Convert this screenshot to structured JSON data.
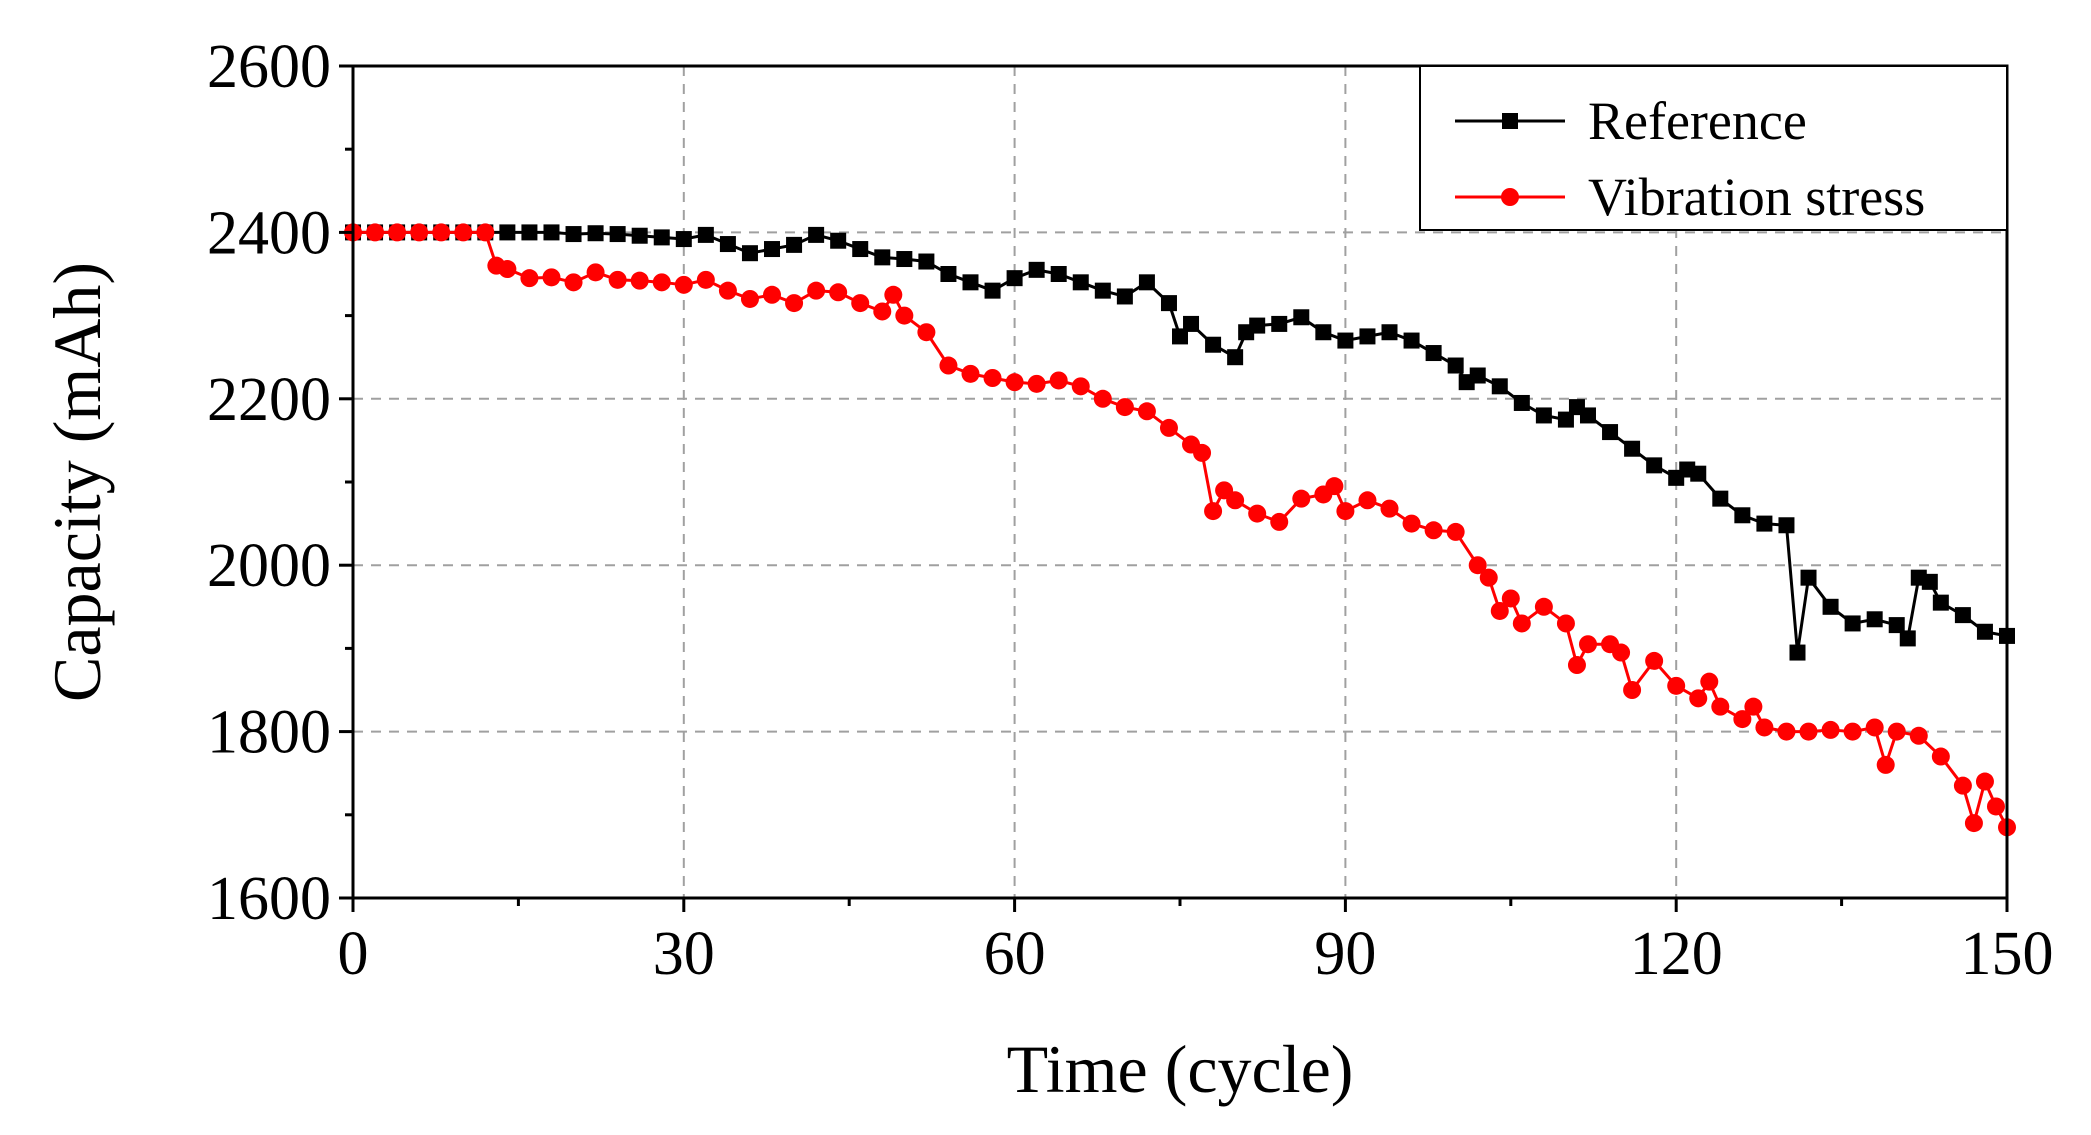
{
  "chart_data": {
    "type": "line",
    "title": "",
    "xlabel": "Time (cycle)",
    "ylabel": "Capacity (mAh)",
    "xlim": [
      0,
      150
    ],
    "ylim": [
      1600,
      2600
    ],
    "xticks": [
      0,
      30,
      60,
      90,
      120,
      150
    ],
    "yticks": [
      1600,
      1800,
      2000,
      2200,
      2400,
      2600
    ],
    "grid": true,
    "legend_position": "top-right",
    "series": [
      {
        "name": "Reference",
        "color": "#000000",
        "marker": "square",
        "x": [
          0,
          2,
          4,
          6,
          8,
          10,
          12,
          14,
          16,
          18,
          20,
          22,
          24,
          26,
          28,
          30,
          32,
          34,
          36,
          38,
          40,
          42,
          44,
          46,
          48,
          50,
          52,
          54,
          56,
          58,
          60,
          62,
          64,
          66,
          68,
          70,
          72,
          74,
          75,
          76,
          78,
          80,
          81,
          82,
          84,
          86,
          88,
          90,
          92,
          94,
          96,
          98,
          100,
          101,
          102,
          104,
          106,
          108,
          110,
          111,
          112,
          114,
          116,
          118,
          120,
          121,
          122,
          124,
          126,
          128,
          130,
          131,
          132,
          134,
          136,
          138,
          140,
          141,
          142,
          143,
          144,
          146,
          148,
          150
        ],
        "values": [
          2400,
          2400,
          2400,
          2400,
          2400,
          2400,
          2400,
          2400,
          2400,
          2400,
          2398,
          2399,
          2398,
          2396,
          2394,
          2392,
          2397,
          2386,
          2375,
          2380,
          2385,
          2397,
          2390,
          2380,
          2370,
          2368,
          2365,
          2350,
          2340,
          2330,
          2345,
          2355,
          2350,
          2340,
          2330,
          2323,
          2340,
          2315,
          2275,
          2290,
          2265,
          2250,
          2280,
          2288,
          2290,
          2298,
          2280,
          2270,
          2275,
          2280,
          2270,
          2255,
          2240,
          2220,
          2228,
          2215,
          2195,
          2180,
          2175,
          2190,
          2180,
          2160,
          2140,
          2120,
          2105,
          2115,
          2110,
          2080,
          2060,
          2050,
          2048,
          1895,
          1985,
          1950,
          1930,
          1935,
          1928,
          1912,
          1985,
          1980,
          1955,
          1940,
          1920,
          1915
        ]
      },
      {
        "name": "Vibration stress",
        "color": "#ff0000",
        "marker": "circle",
        "x": [
          0,
          2,
          4,
          6,
          8,
          10,
          12,
          13,
          14,
          16,
          18,
          20,
          22,
          24,
          26,
          28,
          30,
          32,
          34,
          36,
          38,
          40,
          42,
          44,
          46,
          48,
          49,
          50,
          52,
          54,
          56,
          58,
          60,
          62,
          64,
          66,
          68,
          70,
          72,
          74,
          76,
          77,
          78,
          79,
          80,
          82,
          84,
          86,
          88,
          89,
          90,
          92,
          94,
          96,
          98,
          100,
          102,
          103,
          104,
          105,
          106,
          108,
          110,
          111,
          112,
          114,
          115,
          116,
          118,
          120,
          122,
          123,
          124,
          126,
          127,
          128,
          130,
          132,
          134,
          136,
          138,
          139,
          140,
          142,
          144,
          146,
          147,
          148,
          149,
          150
        ],
        "values": [
          2400,
          2400,
          2400,
          2400,
          2400,
          2400,
          2400,
          2360,
          2356,
          2345,
          2346,
          2340,
          2352,
          2343,
          2342,
          2340,
          2337,
          2343,
          2330,
          2320,
          2325,
          2315,
          2330,
          2328,
          2315,
          2305,
          2325,
          2300,
          2280,
          2240,
          2230,
          2225,
          2220,
          2218,
          2222,
          2215,
          2200,
          2190,
          2185,
          2165,
          2145,
          2135,
          2065,
          2090,
          2078,
          2062,
          2052,
          2080,
          2085,
          2095,
          2065,
          2078,
          2068,
          2050,
          2042,
          2040,
          2000,
          1985,
          1945,
          1960,
          1930,
          1950,
          1930,
          1880,
          1905,
          1905,
          1895,
          1850,
          1885,
          1855,
          1840,
          1860,
          1830,
          1815,
          1830,
          1805,
          1800,
          1800,
          1802,
          1800,
          1805,
          1760,
          1800,
          1795,
          1770,
          1735,
          1690,
          1740,
          1710,
          1685
        ]
      }
    ]
  }
}
